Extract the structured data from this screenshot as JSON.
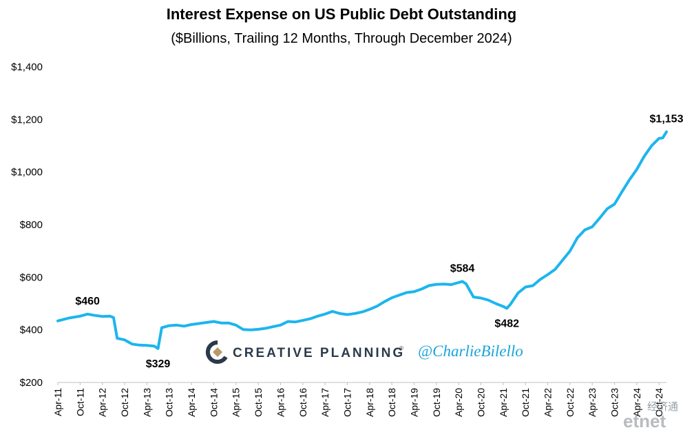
{
  "chart_data": {
    "type": "line",
    "title": "Interest Expense on US Public Debt Outstanding",
    "subtitle": "($Billions, Trailing 12 Months, Through December 2024)",
    "ylim": [
      200,
      1400
    ],
    "yticks": [
      200,
      400,
      600,
      800,
      1000,
      1200,
      1400
    ],
    "ytick_labels": [
      "$200",
      "$400",
      "$600",
      "$800",
      "$1,000",
      "$1,200",
      "$1,400"
    ],
    "x_start": "2011-04",
    "x_end": "2024-12",
    "xtick_labels": [
      "Apr-11",
      "Oct-11",
      "Apr-12",
      "Oct-12",
      "Apr-13",
      "Oct-13",
      "Apr-14",
      "Oct-14",
      "Apr-15",
      "Oct-15",
      "Apr-16",
      "Oct-16",
      "Apr-17",
      "Oct-17",
      "Apr-18",
      "Oct-18",
      "Apr-19",
      "Oct-19",
      "Apr-20",
      "Oct-20",
      "Apr-21",
      "Oct-21",
      "Apr-22",
      "Oct-22",
      "Apr-23",
      "Oct-23",
      "Apr-24",
      "Oct-24"
    ],
    "series": [
      {
        "color": "#1cb5ee",
        "points": [
          [
            "2011-04",
            434
          ],
          [
            "2011-07",
            445
          ],
          [
            "2011-10",
            452
          ],
          [
            "2011-12",
            460
          ],
          [
            "2012-02",
            455
          ],
          [
            "2012-04",
            451
          ],
          [
            "2012-06",
            452
          ],
          [
            "2012-07",
            447
          ],
          [
            "2012-08",
            368
          ],
          [
            "2012-10",
            362
          ],
          [
            "2012-12",
            346
          ],
          [
            "2013-02",
            342
          ],
          [
            "2013-04",
            341
          ],
          [
            "2013-06",
            338
          ],
          [
            "2013-07",
            329
          ],
          [
            "2013-08",
            408
          ],
          [
            "2013-10",
            416
          ],
          [
            "2013-12",
            418
          ],
          [
            "2014-02",
            414
          ],
          [
            "2014-04",
            420
          ],
          [
            "2014-06",
            424
          ],
          [
            "2014-08",
            428
          ],
          [
            "2014-10",
            432
          ],
          [
            "2014-12",
            426
          ],
          [
            "2015-02",
            426
          ],
          [
            "2015-04",
            418
          ],
          [
            "2015-06",
            401
          ],
          [
            "2015-08",
            400
          ],
          [
            "2015-10",
            402
          ],
          [
            "2015-12",
            406
          ],
          [
            "2016-02",
            412
          ],
          [
            "2016-04",
            418
          ],
          [
            "2016-06",
            432
          ],
          [
            "2016-08",
            430
          ],
          [
            "2016-10",
            436
          ],
          [
            "2016-12",
            442
          ],
          [
            "2017-02",
            452
          ],
          [
            "2017-04",
            460
          ],
          [
            "2017-06",
            470
          ],
          [
            "2017-08",
            462
          ],
          [
            "2017-10",
            458
          ],
          [
            "2017-12",
            462
          ],
          [
            "2018-02",
            468
          ],
          [
            "2018-04",
            478
          ],
          [
            "2018-06",
            490
          ],
          [
            "2018-08",
            507
          ],
          [
            "2018-10",
            522
          ],
          [
            "2018-12",
            532
          ],
          [
            "2019-02",
            542
          ],
          [
            "2019-04",
            545
          ],
          [
            "2019-06",
            555
          ],
          [
            "2019-08",
            568
          ],
          [
            "2019-10",
            573
          ],
          [
            "2019-12",
            574
          ],
          [
            "2020-02",
            572
          ],
          [
            "2020-04",
            580
          ],
          [
            "2020-05",
            584
          ],
          [
            "2020-06",
            575
          ],
          [
            "2020-08",
            525
          ],
          [
            "2020-10",
            521
          ],
          [
            "2020-12",
            513
          ],
          [
            "2021-02",
            500
          ],
          [
            "2021-04",
            489
          ],
          [
            "2021-05",
            482
          ],
          [
            "2021-06",
            498
          ],
          [
            "2021-08",
            540
          ],
          [
            "2021-10",
            563
          ],
          [
            "2021-12",
            568
          ],
          [
            "2022-02",
            592
          ],
          [
            "2022-04",
            610
          ],
          [
            "2022-06",
            630
          ],
          [
            "2022-08",
            665
          ],
          [
            "2022-10",
            700
          ],
          [
            "2022-12",
            750
          ],
          [
            "2023-02",
            780
          ],
          [
            "2023-04",
            792
          ],
          [
            "2023-06",
            825
          ],
          [
            "2023-08",
            860
          ],
          [
            "2023-10",
            878
          ],
          [
            "2023-12",
            925
          ],
          [
            "2024-02",
            970
          ],
          [
            "2024-04",
            1010
          ],
          [
            "2024-06",
            1060
          ],
          [
            "2024-08",
            1100
          ],
          [
            "2024-10",
            1128
          ],
          [
            "2024-11",
            1130
          ],
          [
            "2024-12",
            1153
          ]
        ]
      }
    ],
    "annotations": [
      {
        "text": "$460",
        "date": "2011-12",
        "value": 460,
        "pos": "above"
      },
      {
        "text": "$329",
        "date": "2013-07",
        "value": 329,
        "pos": "below"
      },
      {
        "text": "$584",
        "date": "2020-05",
        "value": 584,
        "pos": "above"
      },
      {
        "text": "$482",
        "date": "2021-05",
        "value": 482,
        "pos": "below"
      },
      {
        "text": "$1,153",
        "date": "2024-12",
        "value": 1153,
        "pos": "above"
      }
    ],
    "grid": false
  },
  "branding": {
    "logo_text": "CREATIVE PLANNING",
    "trademark": "®",
    "handle": "@CharlieBilello",
    "watermark_cn": "经济通",
    "watermark_en": "etnet"
  }
}
